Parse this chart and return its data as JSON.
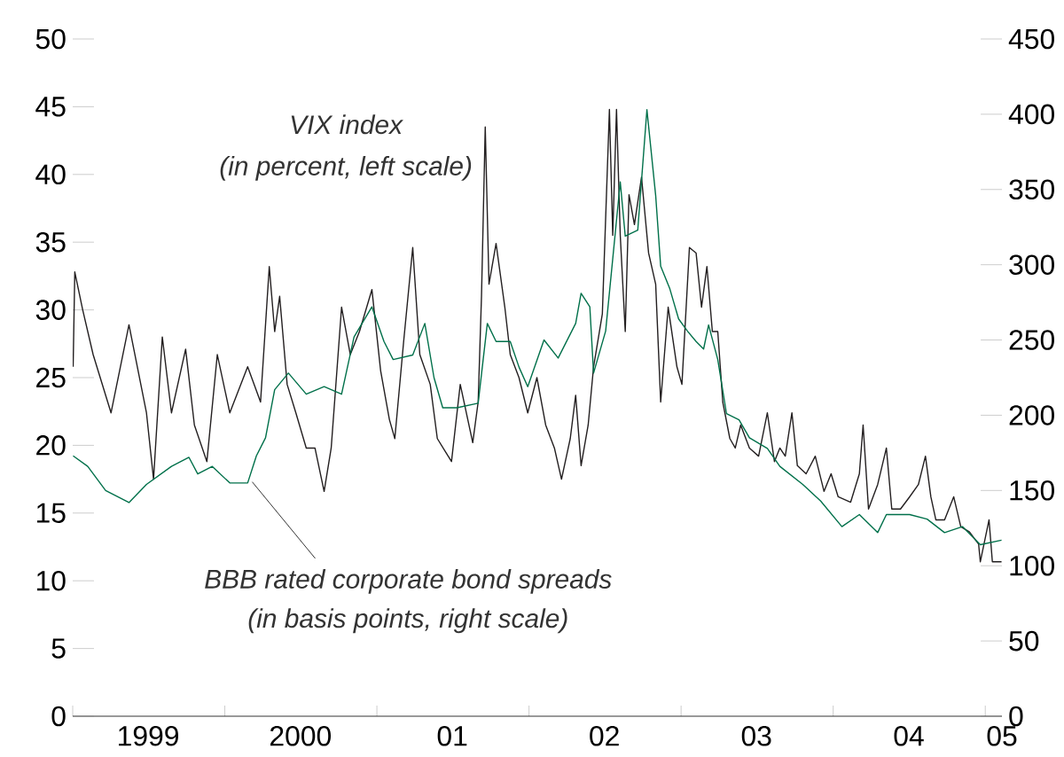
{
  "chart_data": {
    "type": "line",
    "xlim": [
      "1999-01-01",
      "2005-02-10"
    ],
    "xticks": [
      {
        "value": "1999-01-01",
        "label": null
      },
      {
        "value": "2000-01-01",
        "label": null
      },
      {
        "value": "2001-01-01",
        "label": null
      },
      {
        "value": "2002-01-01",
        "label": null
      },
      {
        "value": "2003-01-01",
        "label": null
      },
      {
        "value": "2004-01-01",
        "label": null
      },
      {
        "value": "2005-01-01",
        "label": null
      },
      {
        "value": "1999-07-01",
        "label": "1999"
      },
      {
        "value": "2000-07-01",
        "label": "2000"
      },
      {
        "value": "2001-07-01",
        "label": "01"
      },
      {
        "value": "2002-07-01",
        "label": "02"
      },
      {
        "value": "2003-07-01",
        "label": "03"
      },
      {
        "value": "2004-07-01",
        "label": "04"
      },
      {
        "value": "2005-02-10",
        "label": "05"
      }
    ],
    "ylim": [
      0,
      50
    ],
    "yticks": [
      0,
      5,
      10,
      15,
      20,
      25,
      30,
      35,
      40,
      45,
      50
    ],
    "y2lim": [
      0,
      450
    ],
    "y2ticks": [
      0,
      50,
      100,
      150,
      200,
      250,
      300,
      350,
      400,
      450
    ],
    "annotations": [
      "VIX index",
      "(in percent, left scale)",
      {
        "text": "BBB rated corporate bond spreads",
        "x": "2000-03-07",
        "y": 17.3
      },
      "(in basis points, right scale)"
    ],
    "series": [
      {
        "color": "#231f20",
        "x": [
          "1999-01-02",
          "1999-01-06",
          "1999-01-25",
          "1999-02-19",
          "1999-04-03",
          "1999-05-16",
          "1999-06-27",
          "1999-07-14",
          "1999-08-04",
          "1999-08-26",
          "1999-09-29",
          "1999-10-20",
          "1999-11-19",
          "1999-12-14",
          "2000-01-13",
          "2000-02-25",
          "2000-03-27",
          "2000-04-17",
          "2000-04-30",
          "2000-05-12",
          "2000-05-30",
          "2000-06-20",
          "2000-07-15",
          "2000-08-05",
          "2000-08-27",
          "2000-09-13",
          "2000-10-08",
          "2000-10-29",
          "2000-11-20",
          "2000-12-20",
          "2001-01-10",
          "2001-01-31",
          "2001-02-13",
          "2001-03-06",
          "2001-03-28",
          "2001-04-14",
          "2001-05-09",
          "2001-05-26",
          "2001-06-29",
          "2001-07-20",
          "2001-08-19",
          "2001-09-01",
          "2001-09-09",
          "2001-09-18",
          "2001-09-27",
          "2001-10-14",
          "2001-11-04",
          "2001-11-17",
          "2001-12-08",
          "2001-12-29",
          "2002-01-20",
          "2002-02-10",
          "2002-03-03",
          "2002-03-20",
          "2002-04-10",
          "2002-04-23",
          "2002-05-06",
          "2002-05-23",
          "2002-06-05",
          "2002-06-26",
          "2002-07-13",
          "2002-07-21",
          "2002-07-30",
          "2002-08-08",
          "2002-08-20",
          "2002-08-29",
          "2002-09-11",
          "2002-09-28",
          "2002-10-15",
          "2002-11-01",
          "2002-11-13",
          "2002-12-01",
          "2002-12-22",
          "2003-01-03",
          "2003-01-21",
          "2003-02-06",
          "2003-02-19",
          "2003-03-04",
          "2003-03-17",
          "2003-03-30",
          "2003-04-11",
          "2003-04-28",
          "2003-05-11",
          "2003-05-24",
          "2003-06-14",
          "2003-07-06",
          "2003-07-27",
          "2003-08-13",
          "2003-08-26",
          "2003-09-08",
          "2003-09-24",
          "2003-10-07",
          "2003-10-28",
          "2003-11-19",
          "2003-12-10",
          "2003-12-27",
          "2004-01-13",
          "2004-02-12",
          "2004-03-04",
          "2004-03-13",
          "2004-03-26",
          "2004-04-17",
          "2004-05-08",
          "2004-05-21",
          "2004-06-11",
          "2004-07-03",
          "2004-07-24",
          "2004-08-10",
          "2004-08-23",
          "2004-09-04",
          "2004-09-25",
          "2004-10-17",
          "2004-11-03",
          "2004-11-24",
          "2004-12-16",
          "2004-12-20",
          "2005-01-10",
          "2005-01-18",
          "2005-02-09"
        ],
        "values": [
          25.8,
          32.8,
          30,
          26.7,
          22.4,
          28.9,
          22.4,
          17.5,
          28,
          22.4,
          27.1,
          21.5,
          18.8,
          26.7,
          22.4,
          25.8,
          23.2,
          33.2,
          28.4,
          31,
          24.5,
          22.4,
          19.8,
          19.8,
          16.6,
          19.8,
          30.2,
          26.7,
          28.4,
          31.5,
          25.5,
          21.9,
          20.5,
          27.6,
          34.6,
          26.7,
          24.5,
          20.5,
          18.8,
          24.5,
          20.2,
          23.2,
          31,
          43.5,
          31.9,
          34.9,
          30.2,
          26.7,
          25,
          22.4,
          25,
          21.5,
          19.8,
          17.5,
          20.5,
          23.7,
          18.5,
          21.5,
          25.8,
          29.7,
          44.8,
          35.5,
          44.8,
          35.5,
          28.4,
          38.5,
          36.3,
          39.8,
          34.2,
          31.9,
          23.2,
          30.2,
          25.8,
          24.5,
          34.6,
          34.2,
          30.2,
          33.2,
          28.4,
          28.4,
          23.2,
          20.5,
          19.8,
          21.5,
          19.8,
          19.2,
          22.4,
          18.8,
          19.8,
          19.2,
          22.4,
          18.5,
          17.9,
          19.2,
          16.6,
          17.9,
          16.2,
          15.8,
          17.9,
          21.5,
          15.3,
          17.1,
          19.8,
          15.3,
          15.3,
          16.2,
          17.1,
          19.2,
          16.2,
          14.5,
          14.5,
          16.2,
          14,
          13.6,
          12.7,
          11.4,
          14.5,
          11.4,
          11.4
        ]
      },
      {
        "color": "#00704a",
        "axis": "y2",
        "x": [
          "1999-01-02",
          "1999-02-06",
          "1999-03-21",
          "1999-05-16",
          "1999-06-27",
          "1999-08-26",
          "1999-10-07",
          "1999-10-28",
          "1999-12-02",
          "2000-01-13",
          "2000-02-25",
          "2000-03-17",
          "2000-04-08",
          "2000-04-30",
          "2000-06-02",
          "2000-07-15",
          "2000-08-27",
          "2000-10-08",
          "2000-11-07",
          "2000-12-20",
          "2001-01-18",
          "2001-02-09",
          "2001-03-28",
          "2001-04-26",
          "2001-05-18",
          "2001-06-08",
          "2001-07-12",
          "2001-09-01",
          "2001-09-23",
          "2001-10-14",
          "2001-11-17",
          "2001-12-08",
          "2001-12-29",
          "2002-02-06",
          "2002-03-12",
          "2002-04-23",
          "2002-05-06",
          "2002-05-27",
          "2002-06-05",
          "2002-07-04",
          "2002-08-08",
          "2002-08-20",
          "2002-09-19",
          "2002-10-11",
          "2002-11-01",
          "2002-11-13",
          "2002-12-05",
          "2002-12-26",
          "2003-01-16",
          "2003-02-06",
          "2003-02-24",
          "2003-03-08",
          "2003-03-30",
          "2003-04-20",
          "2003-05-20",
          "2003-06-14",
          "2003-07-27",
          "2003-08-26",
          "2003-10-20",
          "2003-12-02",
          "2004-01-22",
          "2004-03-04",
          "2004-04-17",
          "2004-05-08",
          "2004-07-03",
          "2004-08-14",
          "2004-09-25",
          "2004-11-07",
          "2004-12-20",
          "2005-02-09"
        ],
        "values": [
          173,
          166,
          150,
          142,
          154,
          166,
          172,
          161,
          166,
          155,
          155,
          173,
          185,
          217,
          228,
          214,
          219,
          214,
          252,
          272,
          249,
          237,
          240,
          261,
          225,
          205,
          205,
          208,
          261,
          249,
          249,
          232,
          219,
          250,
          238,
          261,
          281,
          272,
          228,
          256,
          355,
          319,
          323,
          403,
          346,
          299,
          284,
          264,
          256,
          249,
          244,
          260,
          237,
          201,
          197,
          185,
          178,
          166,
          154,
          143,
          126,
          134,
          122,
          134,
          134,
          131,
          122,
          126,
          114,
          117
        ]
      }
    ]
  }
}
